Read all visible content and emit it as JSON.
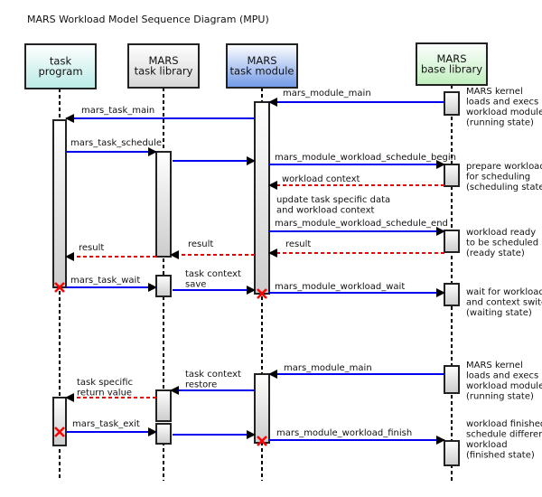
{
  "title": "MARS Workload Model Sequence Diagram (MPU)",
  "participants": [
    {
      "lines": [
        "task",
        "program"
      ],
      "color": "#b9ebe6"
    },
    {
      "lines": [
        "MARS",
        "task library"
      ],
      "color": "#d6d6d6"
    },
    {
      "lines": [
        "MARS",
        "task module"
      ],
      "color": "#6f98e6"
    },
    {
      "lines": [
        "MARS",
        "base library"
      ],
      "color": "#bfeebd"
    }
  ],
  "messages": [
    {
      "lines": [
        "mars_module_main"
      ],
      "kind": "call"
    },
    {
      "lines": [
        "mars_task_main"
      ],
      "kind": "call"
    },
    {
      "lines": [
        "mars_task_schedule"
      ],
      "kind": "call"
    },
    {
      "lines": [],
      "kind": "call"
    },
    {
      "lines": [
        "mars_module_workload_schedule_begin"
      ],
      "kind": "call"
    },
    {
      "lines": [
        "workload context"
      ],
      "kind": "return"
    },
    {
      "lines": [
        "mars_module_workload_schedule_end"
      ],
      "kind": "call"
    },
    {
      "lines": [
        "result"
      ],
      "kind": "return"
    },
    {
      "lines": [
        "result"
      ],
      "kind": "return"
    },
    {
      "lines": [
        "result"
      ],
      "kind": "return"
    },
    {
      "lines": [
        "mars_task_wait"
      ],
      "kind": "call"
    },
    {
      "lines": [
        "task context",
        "save"
      ],
      "kind": "call"
    },
    {
      "lines": [
        "mars_module_workload_wait"
      ],
      "kind": "call"
    },
    {
      "lines": [
        "mars_module_main"
      ],
      "kind": "call"
    },
    {
      "lines": [
        "task context",
        "restore"
      ],
      "kind": "call"
    },
    {
      "lines": [
        "task specific",
        "return value"
      ],
      "kind": "return"
    },
    {
      "lines": [
        "mars_task_exit"
      ],
      "kind": "call"
    },
    {
      "lines": [],
      "kind": "call"
    },
    {
      "lines": [
        "mars_module_workload_finish"
      ],
      "kind": "call"
    }
  ],
  "notes": [
    {
      "lines": [
        "MARS kernel",
        "loads and execs",
        "workload module",
        "(running state)"
      ]
    },
    {
      "lines": [
        "prepare workload",
        "for scheduling",
        "(scheduling state)"
      ]
    },
    {
      "lines": [
        "update task specific data",
        "and workload context"
      ]
    },
    {
      "lines": [
        "workload ready",
        "to be scheduled",
        "(ready state)"
      ]
    },
    {
      "lines": [
        "wait for workload",
        "and context switch",
        "(waiting state)"
      ]
    },
    {
      "lines": [
        "MARS kernel",
        "loads and execs",
        "workload module",
        "(running state)"
      ]
    },
    {
      "lines": [
        "workload finished",
        "schedule different",
        "workload",
        "(finished state)"
      ]
    }
  ],
  "colors": {
    "call": "#0000ee",
    "return": "#ee0000",
    "destroy": "#ff0000"
  }
}
